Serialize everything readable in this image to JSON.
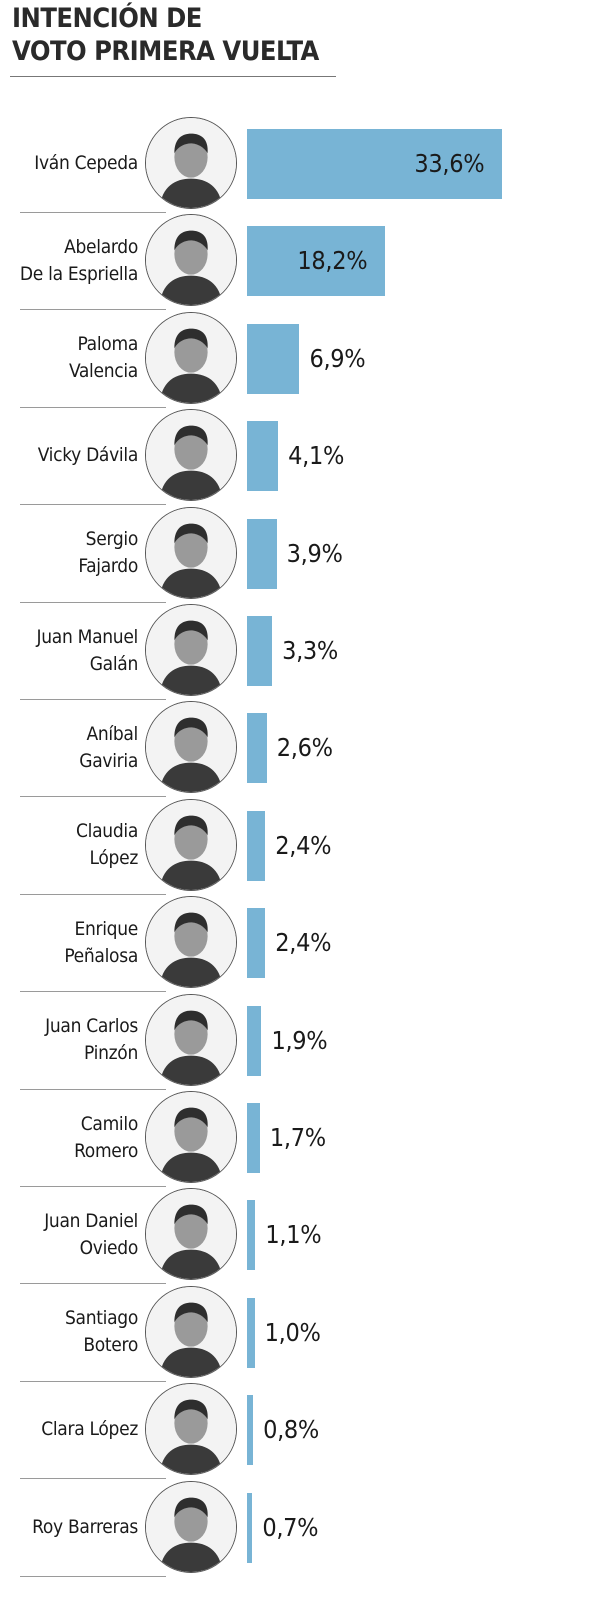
{
  "chart_data": {
    "type": "bar",
    "orientation": "horizontal",
    "title": "INTENCIÓN DE VOTO PRIMERA VUELTA",
    "title_lines": [
      "INTENCIÓN DE",
      "VOTO PRIMERA VUELTA"
    ],
    "bar_color": "#78b4d5",
    "categories": [
      "Iván Cepeda",
      "Abelardo De la Espriella",
      "Paloma Valencia",
      "Vicky Dávila",
      "Sergio Fajardo",
      "Juan Manuel Galán",
      "Aníbal Gaviria",
      "Claudia López",
      "Enrique Peñalosa",
      "Juan Carlos Pinzón",
      "Camilo Romero",
      "Juan Daniel Oviedo",
      "Santiago Botero",
      "Clara López",
      "Roy Barreras"
    ],
    "values": [
      33.6,
      18.2,
      6.9,
      4.1,
      3.9,
      3.3,
      2.6,
      2.4,
      2.4,
      1.9,
      1.7,
      1.1,
      1.0,
      0.8,
      0.7
    ],
    "value_labels": [
      "33,6%",
      "18,2%",
      "6,9%",
      "4,1%",
      "3,9%",
      "3,3%",
      "2,6%",
      "2,4%",
      "2,4%",
      "1,9%",
      "1,7%",
      "1,1%",
      "1,0%",
      "0,8%",
      "0,7%"
    ],
    "name_lines": [
      [
        "Iván Cepeda"
      ],
      [
        "Abelardo",
        "De la Espriella"
      ],
      [
        "Paloma",
        "Valencia"
      ],
      [
        "Vicky Dávila"
      ],
      [
        "Sergio",
        "Fajardo"
      ],
      [
        "Juan Manuel",
        "Galán"
      ],
      [
        "Aníbal",
        "Gaviria"
      ],
      [
        "Claudia",
        "López"
      ],
      [
        "Enrique",
        "Peñalosa"
      ],
      [
        "Juan Carlos",
        "Pinzón"
      ],
      [
        "Camilo",
        "Romero"
      ],
      [
        "Juan Daniel",
        "Oviedo"
      ],
      [
        "Santiago",
        "Botero"
      ],
      [
        "Clara López"
      ],
      [
        "Roy Barreras"
      ]
    ],
    "value_label_position": [
      "inside",
      "inside",
      "outside",
      "outside",
      "outside",
      "outside",
      "outside",
      "outside",
      "outside",
      "outside",
      "outside",
      "outside",
      "outside",
      "outside",
      "outside"
    ],
    "xlabel": "",
    "ylabel": "",
    "grid": false,
    "legend": "none"
  }
}
